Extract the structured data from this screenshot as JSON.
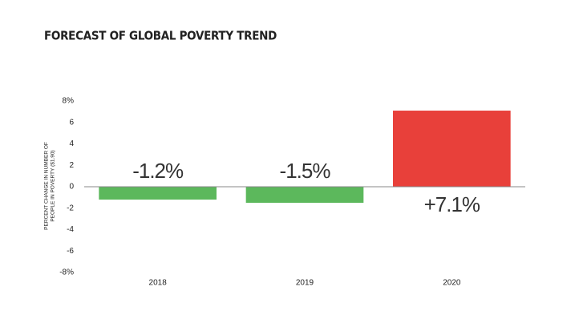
{
  "chart_data": {
    "type": "bar",
    "title": "FORECAST OF GLOBAL POVERTY TREND",
    "y_label": [
      "PERCENT CHANGE IN NUMBER OF",
      "PEOPLE IN POVERTY ($1.90)"
    ],
    "categories": [
      "2018",
      "2019",
      "2020"
    ],
    "values": [
      -1.2,
      -1.5,
      7.1
    ],
    "value_labels": [
      "-1.2%",
      "-1.5%",
      "+7.1%"
    ],
    "colors": [
      "#5cb85c",
      "#5cb85c",
      "#e8403a"
    ],
    "ylim": [
      -8,
      8
    ],
    "yticks": [
      {
        "value": 8,
        "label": "8%"
      },
      6,
      4,
      2,
      0,
      -2,
      -4,
      -6,
      {
        "value": -8,
        "label": "-8%"
      }
    ],
    "grid": false
  }
}
